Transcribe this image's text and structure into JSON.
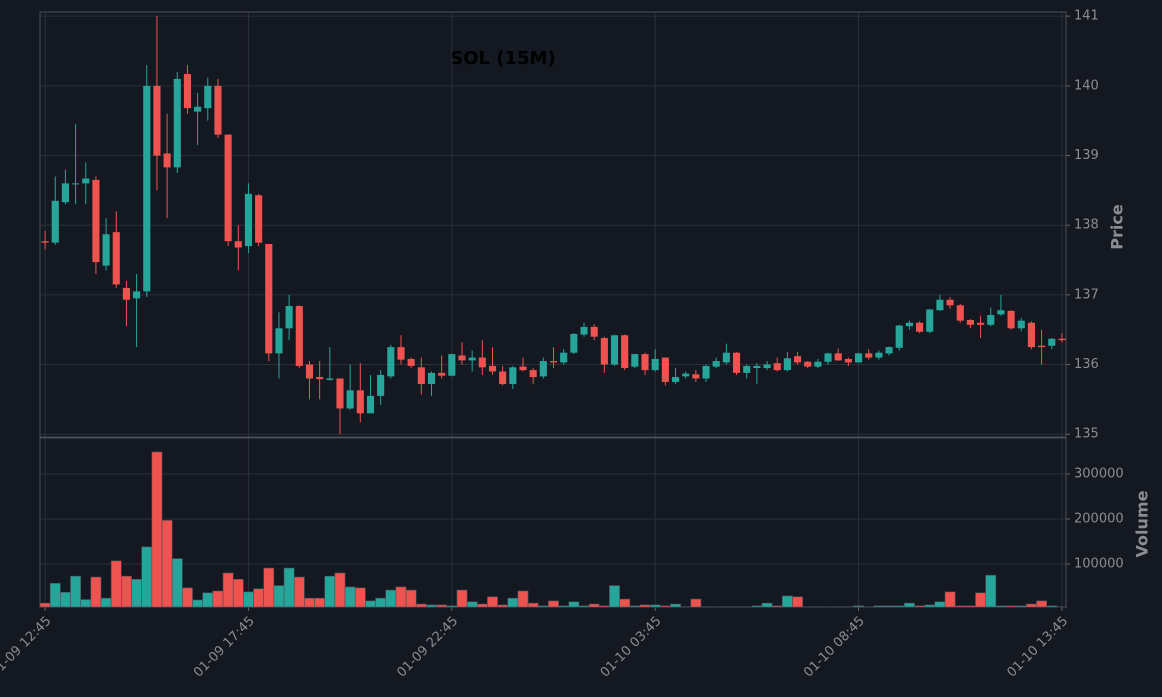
{
  "chart_data": {
    "type": "candlestick",
    "title": "SOL (15M)",
    "ylabel": "Price",
    "volume_label": "Volume",
    "up_color": "#26a69a",
    "down_color": "#ef5350",
    "grid": true,
    "xlim": [
      -0.5,
      100.4
    ],
    "xticks": [
      {
        "value": 0,
        "label": "01-09 12:45"
      },
      {
        "value": 20,
        "label": "01-09 17:45"
      },
      {
        "value": 40,
        "label": "01-09 22:45"
      },
      {
        "value": 60,
        "label": "01-10 03:45"
      },
      {
        "value": 80,
        "label": "01-10 08:45"
      },
      {
        "value": 100,
        "label": "01-10 13:45"
      }
    ],
    "ylim": [
      134.96,
      141.06
    ],
    "yticks": [
      135,
      136,
      137,
      138,
      139,
      140,
      141
    ],
    "volume_ylim": [
      4400,
      380000
    ],
    "volume_yticks": [
      100000,
      200000,
      300000
    ],
    "open": [
      137.77,
      137.75,
      138.33,
      138.6,
      138.6,
      138.65,
      137.42,
      137.9,
      137.1,
      136.95,
      137.05,
      140.0,
      139.03,
      138.83,
      140.17,
      139.63,
      139.68,
      140.0,
      139.3,
      137.77,
      137.7,
      138.43,
      137.73,
      136.16,
      136.52,
      136.84,
      136.0,
      135.82,
      135.78,
      135.8,
      135.37,
      135.63,
      135.3,
      135.55,
      135.83,
      136.25,
      136.08,
      135.96,
      135.72,
      135.88,
      135.84,
      136.13,
      136.06,
      136.1,
      135.98,
      135.9,
      135.72,
      135.97,
      135.92,
      135.83,
      136.05,
      136.03,
      136.17,
      136.43,
      136.54,
      136.38,
      136.0,
      136.42,
      135.97,
      136.15,
      135.92,
      136.1,
      135.75,
      135.83,
      135.86,
      135.8,
      135.97,
      136.03,
      136.17,
      135.88,
      135.95,
      135.95,
      136.02,
      135.92,
      136.12,
      136.04,
      135.97,
      136.04,
      136.16,
      136.08,
      136.03,
      136.16,
      136.1,
      136.16,
      136.24,
      136.55,
      136.6,
      136.47,
      136.78,
      136.93,
      136.85,
      136.64,
      136.6,
      136.57,
      136.72,
      136.77,
      136.52,
      136.6,
      136.27,
      136.27,
      136.37
    ],
    "high": [
      137.92,
      138.7,
      138.8,
      139.45,
      138.9,
      138.7,
      138.1,
      138.2,
      137.2,
      137.3,
      140.3,
      141.0,
      139.6,
      140.2,
      140.3,
      139.9,
      140.12,
      140.1,
      139.3,
      138.0,
      138.6,
      138.45,
      137.73,
      136.75,
      137.0,
      136.85,
      136.05,
      136.05,
      136.25,
      135.8,
      136.0,
      136.02,
      135.85,
      135.92,
      136.28,
      136.42,
      136.1,
      136.1,
      135.9,
      136.13,
      136.15,
      136.32,
      136.2,
      136.35,
      136.25,
      135.98,
      135.98,
      136.1,
      135.95,
      136.1,
      136.25,
      136.22,
      136.45,
      136.6,
      136.58,
      136.4,
      136.43,
      136.43,
      136.15,
      136.17,
      136.22,
      136.1,
      135.95,
      135.9,
      135.92,
      136.0,
      136.1,
      136.3,
      136.18,
      136.0,
      136.02,
      136.05,
      136.1,
      136.18,
      136.18,
      136.05,
      136.08,
      136.17,
      136.23,
      136.1,
      136.17,
      136.22,
      136.2,
      136.26,
      136.57,
      136.63,
      136.62,
      136.8,
      137.0,
      136.97,
      136.87,
      136.65,
      136.7,
      136.82,
      137.0,
      136.78,
      136.67,
      136.62,
      136.5,
      136.38,
      136.45
    ],
    "low": [
      137.65,
      137.72,
      138.3,
      138.3,
      138.3,
      137.3,
      137.35,
      137.1,
      136.55,
      136.25,
      136.97,
      138.5,
      138.1,
      138.75,
      139.6,
      139.15,
      139.5,
      139.25,
      137.7,
      137.35,
      137.6,
      137.7,
      136.05,
      135.8,
      136.35,
      135.95,
      135.5,
      135.5,
      135.77,
      135.0,
      135.35,
      135.17,
      135.3,
      135.42,
      135.8,
      136.0,
      135.95,
      135.57,
      135.55,
      135.8,
      135.83,
      136.0,
      135.9,
      135.85,
      135.85,
      135.7,
      135.65,
      135.9,
      135.72,
      135.8,
      135.95,
      136.0,
      136.15,
      136.4,
      136.35,
      135.88,
      135.98,
      135.92,
      135.95,
      135.85,
      135.9,
      135.7,
      135.72,
      135.8,
      135.75,
      135.75,
      135.95,
      136.0,
      135.85,
      135.8,
      135.72,
      135.92,
      135.9,
      135.9,
      136.0,
      135.95,
      135.95,
      136.0,
      136.05,
      135.98,
      136.03,
      136.07,
      136.07,
      136.13,
      136.2,
      136.5,
      136.45,
      136.45,
      136.77,
      136.8,
      136.6,
      136.52,
      136.38,
      136.55,
      136.7,
      136.5,
      136.48,
      136.22,
      136.0,
      136.22,
      136.32
    ],
    "close": [
      137.75,
      138.35,
      138.6,
      138.6,
      138.67,
      137.47,
      137.87,
      137.15,
      136.93,
      137.05,
      140.0,
      139.0,
      138.83,
      140.1,
      139.68,
      139.7,
      140.0,
      139.3,
      137.77,
      137.68,
      138.45,
      137.75,
      136.16,
      136.52,
      136.84,
      135.98,
      135.8,
      135.79,
      135.8,
      135.37,
      135.63,
      135.3,
      135.55,
      135.85,
      136.25,
      136.07,
      135.98,
      135.72,
      135.88,
      135.84,
      136.15,
      136.06,
      136.1,
      135.96,
      135.9,
      135.72,
      135.96,
      135.92,
      135.82,
      136.05,
      136.03,
      136.17,
      136.44,
      136.54,
      136.4,
      136.0,
      136.42,
      135.95,
      136.15,
      135.92,
      136.08,
      135.75,
      135.82,
      135.87,
      135.8,
      135.98,
      136.05,
      136.17,
      135.88,
      135.98,
      135.98,
      136.0,
      135.92,
      136.09,
      136.03,
      135.97,
      136.04,
      136.16,
      136.06,
      136.03,
      136.16,
      136.1,
      136.17,
      136.25,
      136.56,
      136.6,
      136.47,
      136.79,
      136.93,
      136.85,
      136.63,
      136.57,
      136.57,
      136.71,
      136.78,
      136.52,
      136.63,
      136.25,
      136.25,
      136.37,
      136.35
    ],
    "volume": [
      13000,
      57000,
      37000,
      73000,
      21000,
      71000,
      24000,
      107000,
      73000,
      66000,
      138000,
      349000,
      197000,
      112000,
      47000,
      20000,
      36000,
      40000,
      80000,
      66000,
      38000,
      45000,
      91000,
      52000,
      91000,
      71000,
      24000,
      24000,
      73000,
      80000,
      49000,
      47000,
      18000,
      24000,
      42000,
      49000,
      42000,
      11000,
      9000,
      9000,
      7000,
      42000,
      16000,
      11000,
      27000,
      9000,
      24000,
      40000,
      13000,
      7000,
      18000,
      7000,
      16000,
      7000,
      11000,
      7000,
      52000,
      22000,
      7000,
      9000,
      9000,
      7000,
      11000,
      5000,
      22000,
      5000,
      5000,
      5000,
      5000,
      5000,
      7000,
      13000,
      7000,
      29000,
      27000,
      5000,
      5000,
      5000,
      5000,
      5000,
      7000,
      5000,
      7000,
      7000,
      7000,
      13000,
      7000,
      9000,
      16000,
      38000,
      7000,
      7000,
      36000,
      75000,
      7000,
      7000,
      7000,
      11000,
      18000,
      7000,
      5000
    ]
  }
}
